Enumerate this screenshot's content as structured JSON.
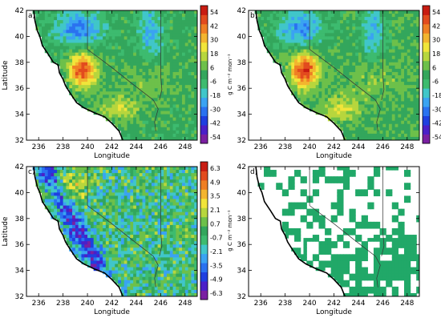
{
  "colors": {
    "colormap": [
      "#7a1fa2",
      "#4b1fc8",
      "#1f3fe0",
      "#2a72f0",
      "#3aa3f2",
      "#40c6c9",
      "#3dbb6f",
      "#33a65c",
      "#6dc04a",
      "#b7d63d",
      "#f1e53a",
      "#f2b52f",
      "#ef7f24",
      "#e24b1e",
      "#c81c12"
    ],
    "sig_fill": "#21a868",
    "coast": "#000000",
    "border": "#333333"
  },
  "chart_data": [
    {
      "type": "heatmap",
      "panel_label": "a)",
      "xlabel": "Longitude",
      "ylabel": "Latitude",
      "xlim": [
        235,
        249
      ],
      "ylim": [
        32,
        42
      ],
      "xticks": [
        "236",
        "238",
        "240",
        "242",
        "244",
        "246",
        "248"
      ],
      "yticks": [
        "32",
        "34",
        "36",
        "38",
        "40",
        "42"
      ],
      "colorbar": {
        "ticks": [
          "54",
          "42",
          "30",
          "18",
          "6",
          "-6",
          "-18",
          "-30",
          "-42",
          "-54"
        ],
        "unit_label": "g C m⁻² mon⁻¹",
        "range": [
          -60,
          60
        ]
      },
      "field_note": "gridded anomaly field over California/Nevada",
      "peak": {
        "lon": 239.6,
        "lat": 37.4,
        "value": 54
      }
    },
    {
      "type": "heatmap",
      "panel_label": "b)",
      "xlabel": "Longitude",
      "ylabel": "",
      "xlim": [
        235,
        249
      ],
      "ylim": [
        32,
        42
      ],
      "xticks": [
        "236",
        "238",
        "240",
        "242",
        "244",
        "246",
        "248"
      ],
      "yticks": [
        "32",
        "34",
        "36",
        "38",
        "40",
        "42"
      ],
      "colorbar": {
        "ticks": [
          "54",
          "42",
          "30",
          "18",
          "6",
          "-6",
          "-18",
          "-30",
          "-42",
          "-54"
        ],
        "unit_label": "g C m⁻² mon⁻¹",
        "range": [
          -60,
          60
        ]
      },
      "peak": {
        "lon": 239.6,
        "lat": 37.4,
        "value": 54
      }
    },
    {
      "type": "heatmap",
      "panel_label": "c)",
      "xlabel": "Longitude",
      "ylabel": "Latitude",
      "xlim": [
        235,
        249
      ],
      "ylim": [
        32,
        42
      ],
      "xticks": [
        "236",
        "238",
        "240",
        "242",
        "244",
        "246",
        "248"
      ],
      "yticks": [
        "32",
        "34",
        "36",
        "38",
        "40",
        "42"
      ],
      "colorbar": {
        "ticks": [
          "6.3",
          "4.9",
          "3.5",
          "2.1",
          "0.7",
          "-0.7",
          "-2.1",
          "-3.5",
          "-4.9",
          "-6.3"
        ],
        "unit_label": "g C m⁻² mon⁻¹",
        "range": [
          -7,
          7
        ]
      }
    },
    {
      "type": "heatmap",
      "panel_label": "d)",
      "xlabel": "Longitude",
      "ylabel": "",
      "xlim": [
        235,
        249
      ],
      "ylim": [
        32,
        42
      ],
      "xticks": [
        "236",
        "238",
        "240",
        "242",
        "244",
        "246",
        "248"
      ],
      "yticks": [
        "32",
        "34",
        "36",
        "38",
        "40",
        "42"
      ],
      "mask_note": "binary significance mask (green = significant)"
    }
  ]
}
